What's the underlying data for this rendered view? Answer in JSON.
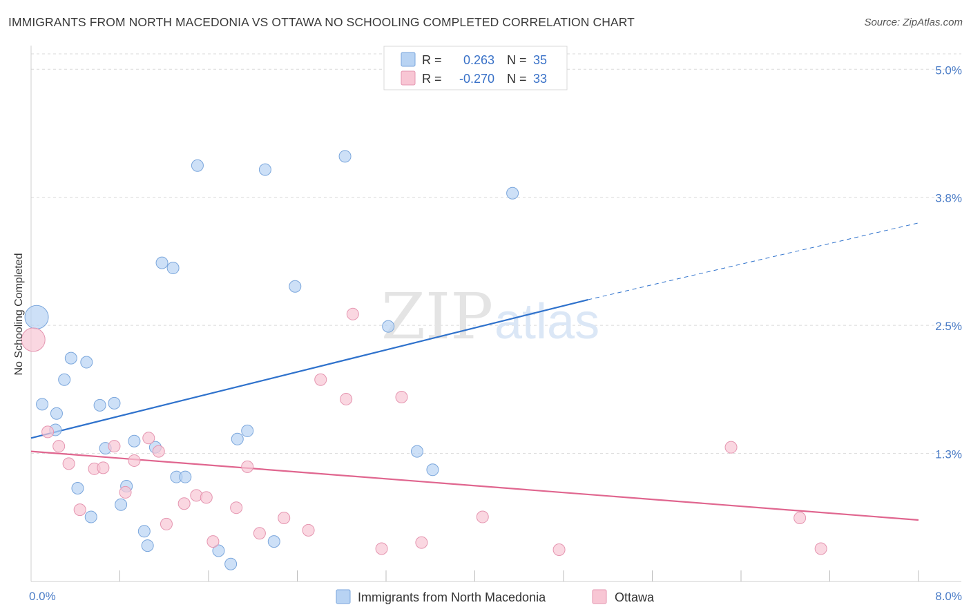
{
  "title": "IMMIGRANTS FROM NORTH MACEDONIA VS OTTAWA NO SCHOOLING COMPLETED CORRELATION CHART",
  "source": "Source: ZipAtlas.com",
  "watermark": {
    "zip": "ZIP",
    "atlas": "atlas"
  },
  "colors": {
    "blue_fill": "#b8d3f3",
    "blue_stroke": "#7aa6dc",
    "blue_line": "#2f72cc",
    "pink_fill": "#f8c6d4",
    "pink_stroke": "#e595b0",
    "pink_line": "#e0668f",
    "tick_label": "#4a7cc7",
    "grid": "#d9d9d9"
  },
  "legend_top": {
    "rows": [
      {
        "r_label": "R =",
        "r_value": "0.263",
        "n_label": "N =",
        "n_value": "35"
      },
      {
        "r_label": "R =",
        "r_value": "-0.270",
        "n_label": "N =",
        "n_value": "33"
      }
    ]
  },
  "chart_data": {
    "type": "scatter",
    "title": "IMMIGRANTS FROM NORTH MACEDONIA VS OTTAWA NO SCHOOLING COMPLETED CORRELATION CHART",
    "xlabel": "",
    "ylabel": "No Schooling Completed",
    "xlim": [
      0,
      8
    ],
    "ylim": [
      0,
      5.15
    ],
    "x_tick_labels": [
      {
        "value": 0,
        "label": "0.0%"
      },
      {
        "value": 8,
        "label": "8.0%"
      }
    ],
    "y_ticks": [
      {
        "value": 1.25,
        "label": "1.3%"
      },
      {
        "value": 2.5,
        "label": "2.5%"
      },
      {
        "value": 3.75,
        "label": "3.8%"
      },
      {
        "value": 5.0,
        "label": "5.0%"
      }
    ],
    "x_minor_ticks": [
      0.8,
      1.6,
      2.4,
      3.2,
      4.0,
      4.8,
      5.6,
      6.4,
      7.2,
      8.0
    ],
    "grid": true,
    "legend_position": "bottom-center",
    "series": [
      {
        "name": "Immigrants from North Macedonia",
        "color": "blue",
        "r": 0.263,
        "n": 35,
        "trend": {
          "x0": 0.0,
          "y0": 1.4,
          "x1": 5.02,
          "y1": 2.75,
          "x_dash_end": 8.0,
          "y_dash_end": 3.5
        },
        "points": [
          [
            0.05,
            2.58,
            "large"
          ],
          [
            0.1,
            1.73
          ],
          [
            0.22,
            1.48
          ],
          [
            0.23,
            1.64
          ],
          [
            0.3,
            1.97
          ],
          [
            0.36,
            2.18
          ],
          [
            0.42,
            0.91
          ],
          [
            0.5,
            2.14
          ],
          [
            0.54,
            0.63
          ],
          [
            0.62,
            1.72
          ],
          [
            0.67,
            1.3
          ],
          [
            0.75,
            1.74
          ],
          [
            0.81,
            0.75
          ],
          [
            0.86,
            0.93
          ],
          [
            0.93,
            1.37
          ],
          [
            1.02,
            0.49
          ],
          [
            1.05,
            0.35
          ],
          [
            1.12,
            1.31
          ],
          [
            1.18,
            3.11
          ],
          [
            1.28,
            3.06
          ],
          [
            1.31,
            1.02
          ],
          [
            1.39,
            1.02
          ],
          [
            1.5,
            4.06
          ],
          [
            1.69,
            0.3
          ],
          [
            1.8,
            0.17
          ],
          [
            1.86,
            1.39
          ],
          [
            1.95,
            1.47
          ],
          [
            2.11,
            4.02
          ],
          [
            2.19,
            0.39
          ],
          [
            2.38,
            2.88
          ],
          [
            2.83,
            4.15
          ],
          [
            3.22,
            2.49
          ],
          [
            3.48,
            1.27
          ],
          [
            3.62,
            1.09
          ],
          [
            4.34,
            3.79
          ]
        ]
      },
      {
        "name": "Ottawa",
        "color": "pink",
        "r": -0.27,
        "n": 33,
        "trend": {
          "x0": 0.0,
          "y0": 1.27,
          "x1": 8.0,
          "y1": 0.6
        },
        "points": [
          [
            0.02,
            2.36,
            "large"
          ],
          [
            0.15,
            1.46
          ],
          [
            0.25,
            1.32
          ],
          [
            0.34,
            1.15
          ],
          [
            0.44,
            0.7
          ],
          [
            0.57,
            1.1
          ],
          [
            0.65,
            1.11
          ],
          [
            0.75,
            1.32
          ],
          [
            0.85,
            0.87
          ],
          [
            0.93,
            1.18
          ],
          [
            1.06,
            1.4
          ],
          [
            1.15,
            1.27
          ],
          [
            1.22,
            0.56
          ],
          [
            1.38,
            0.76
          ],
          [
            1.49,
            0.84
          ],
          [
            1.58,
            0.82
          ],
          [
            1.64,
            0.39
          ],
          [
            1.85,
            0.72
          ],
          [
            1.95,
            1.12
          ],
          [
            2.06,
            0.47
          ],
          [
            2.28,
            0.62
          ],
          [
            2.5,
            0.5
          ],
          [
            2.61,
            1.97
          ],
          [
            2.84,
            1.78
          ],
          [
            2.9,
            2.61
          ],
          [
            3.16,
            0.32
          ],
          [
            3.34,
            1.8
          ],
          [
            3.52,
            0.38
          ],
          [
            4.07,
            0.63
          ],
          [
            4.76,
            0.31
          ],
          [
            6.31,
            1.31
          ],
          [
            6.93,
            0.62
          ],
          [
            7.12,
            0.32
          ]
        ]
      }
    ]
  }
}
